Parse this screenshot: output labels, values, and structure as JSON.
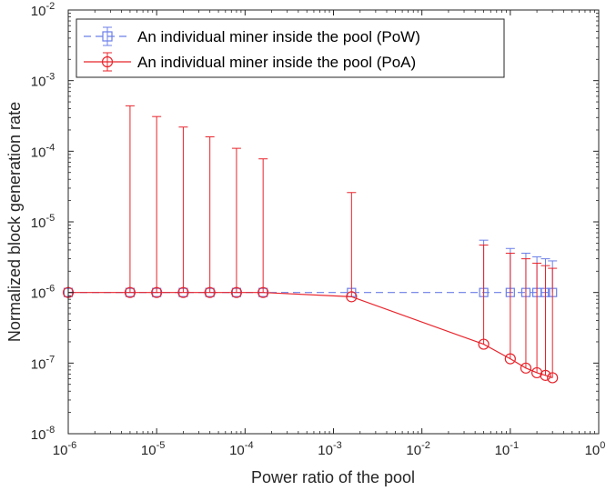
{
  "chart_data": {
    "type": "line",
    "xlabel": "Power ratio of the pool",
    "ylabel": "Normalized block generation rate",
    "x_scale": "log",
    "y_scale": "log",
    "xlim": [
      1e-06,
      1
    ],
    "ylim": [
      1e-08,
      0.01
    ],
    "x_ticks": [
      {
        "base": "10",
        "exp": "-6"
      },
      {
        "base": "10",
        "exp": "-5"
      },
      {
        "base": "10",
        "exp": "-4"
      },
      {
        "base": "10",
        "exp": "-3"
      },
      {
        "base": "10",
        "exp": "-2"
      },
      {
        "base": "10",
        "exp": "-1"
      },
      {
        "base": "10",
        "exp": "0"
      }
    ],
    "y_ticks": [
      {
        "base": "10",
        "exp": "-8"
      },
      {
        "base": "10",
        "exp": "-7"
      },
      {
        "base": "10",
        "exp": "-6"
      },
      {
        "base": "10",
        "exp": "-5"
      },
      {
        "base": "10",
        "exp": "-4"
      },
      {
        "base": "10",
        "exp": "-3"
      },
      {
        "base": "10",
        "exp": "-2"
      }
    ],
    "legend_position": "top-left",
    "grid": false,
    "series": [
      {
        "name": "An individual miner inside the pool (PoW)",
        "color": "#6b7fe8",
        "line_style": "dashed",
        "marker": "square",
        "x": [
          1e-06,
          5e-06,
          1e-05,
          2e-05,
          4e-05,
          8e-05,
          0.00016,
          0.0016,
          0.05,
          0.1,
          0.15,
          0.2,
          0.25,
          0.3
        ],
        "y": [
          1e-06,
          1e-06,
          1e-06,
          1e-06,
          1e-06,
          1e-06,
          1e-06,
          1e-06,
          1e-06,
          1e-06,
          1e-06,
          1e-06,
          1e-06,
          1e-06
        ],
        "err_upper": [
          1e-06,
          1e-06,
          1e-06,
          1e-06,
          1e-06,
          1e-06,
          1e-06,
          1e-06,
          5.5e-06,
          4.2e-06,
          3.6e-06,
          3.2e-06,
          3e-06,
          2.8e-06
        ]
      },
      {
        "name": "An individual miner inside the pool (PoA)",
        "color": "#e8242b",
        "line_style": "solid",
        "marker": "circle",
        "x": [
          1e-06,
          5e-06,
          1e-05,
          2e-05,
          4e-05,
          8e-05,
          0.00016,
          0.0016,
          0.05,
          0.1,
          0.15,
          0.2,
          0.25,
          0.3
        ],
        "y": [
          1e-06,
          1e-06,
          1e-06,
          1e-06,
          1e-06,
          1e-06,
          1e-06,
          8.7e-07,
          1.85e-07,
          1.15e-07,
          8.5e-08,
          7.3e-08,
          6.7e-08,
          6.2e-08
        ],
        "err_upper": [
          1e-06,
          0.00044,
          0.00031,
          0.00022,
          0.00016,
          0.00011,
          7.8e-05,
          2.6e-05,
          4.7e-06,
          3.6e-06,
          3e-06,
          2.6e-06,
          2.4e-06,
          2.2e-06
        ]
      }
    ]
  }
}
